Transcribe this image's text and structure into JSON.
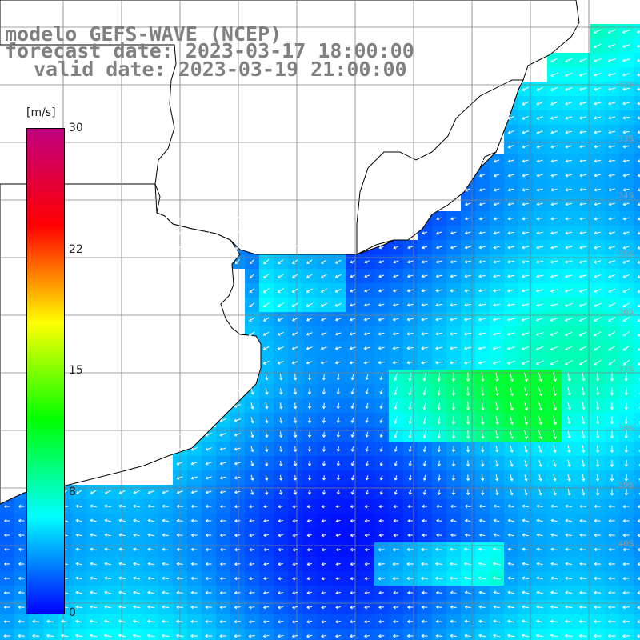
{
  "title": {
    "model": "modelo GEFS-WAVE (NCEP)",
    "forecast": "forecast date: 2023-03-17 18:00:00",
    "valid": "valid date: 2023-03-19 21:00:00"
  },
  "colorbar": {
    "unit": "[m/s]",
    "min": 0,
    "max": 30,
    "ticks": [
      "30",
      "22",
      "15",
      "8",
      "0"
    ],
    "tick_values": [
      30,
      22,
      15,
      8,
      0
    ],
    "colors": [
      "#0000ff",
      "#00ffff",
      "#00ff00",
      "#ffff00",
      "#ff0000",
      "#c00080"
    ]
  },
  "map": {
    "field": "wind speed and direction",
    "land_color": "#ffffff",
    "grid": true,
    "coastline_color": "#000000",
    "vector_color": "#ffffff",
    "latitude_labels": [
      "32S",
      "33S",
      "34S",
      "35S",
      "36S",
      "37S",
      "38S",
      "39S",
      "40S"
    ]
  }
}
